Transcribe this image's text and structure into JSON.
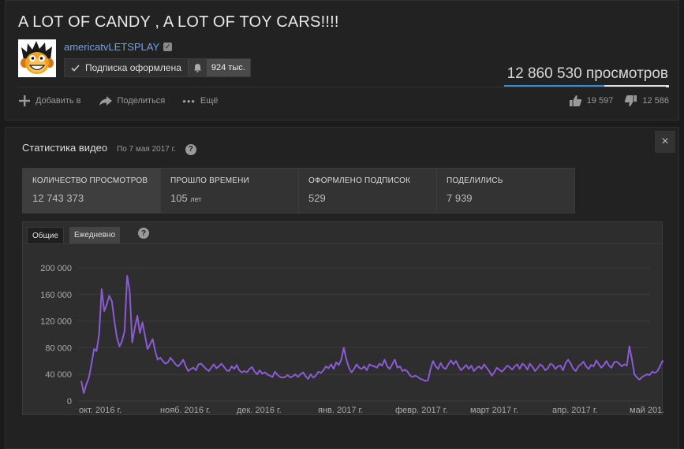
{
  "video": {
    "title": "A LOT OF CANDY , A LOT OF TOY CARS!!!!",
    "channel": "americatvLETSPLAY",
    "subscribe_label": "Подписка оформлена",
    "subscriber_count": "924 тыс.",
    "views": "12 860 530 просмотров",
    "like_ratio": 0.61
  },
  "actions": {
    "add_label": "Добавить в",
    "share_label": "Поделиться",
    "more_label": "Ещё",
    "likes": "19 597",
    "dislikes": "12 586"
  },
  "stats": {
    "title": "Статистика видео",
    "date": "По 7 мая 2017 г.",
    "help": "?",
    "close": "×",
    "metrics": [
      {
        "label": "КОЛИЧЕСТВО ПРОСМОТРОВ",
        "value": "12 743 373",
        "unit": ""
      },
      {
        "label": "ПРОШЛО ВРЕМЕНИ",
        "value": "105",
        "unit": "лет"
      },
      {
        "label": "ОФОРМЛЕНО ПОДПИСОК",
        "value": "529",
        "unit": ""
      },
      {
        "label": "ПОДЕЛИЛИСЬ",
        "value": "7 939",
        "unit": ""
      }
    ],
    "tabs": [
      "Общие",
      "Ежедневно"
    ]
  },
  "colors": {
    "line": "#8b5bd6",
    "accent": "#2e8ee0",
    "channel": "#6fa3e8"
  },
  "chart_data": {
    "type": "line",
    "title": "",
    "ylim": [
      0,
      200000
    ],
    "yticks": [
      "200 000",
      "160 000",
      "120 000",
      "80 000",
      "40 000",
      "0"
    ],
    "xticks": [
      "окт. 2016 г.",
      "нояб. 2016 г.",
      "дек. 2016 г.",
      "янв. 2017 г.",
      "февр. 2017 г.",
      "март 2017 г.",
      "апр. 2017 г.",
      "май 201..."
    ],
    "grid": true,
    "series": [
      {
        "values": [
          30000,
          12000,
          25000,
          35000,
          55000,
          78000,
          75000,
          100000,
          168000,
          135000,
          145000,
          158000,
          150000,
          120000,
          95000,
          82000,
          90000,
          105000,
          188000,
          165000,
          88000,
          110000,
          128000,
          102000,
          118000,
          98000,
          78000,
          85000,
          93000,
          75000,
          62000,
          65000,
          60000,
          56000,
          58000,
          65000,
          60000,
          55000,
          52000,
          56000,
          62000,
          52000,
          45000,
          48000,
          50000,
          46000,
          55000,
          56000,
          52000,
          48000,
          45000,
          50000,
          55000,
          49000,
          52000,
          56000,
          51000,
          46000,
          45000,
          52000,
          48000,
          54000,
          46000,
          43000,
          45000,
          43000,
          48000,
          51000,
          44000,
          40000,
          46000,
          41000,
          43000,
          40000,
          38000,
          36000,
          44000,
          39000,
          36000,
          35000,
          36000,
          39000,
          35000,
          37000,
          40000,
          36000,
          40000,
          43000,
          37000,
          33000,
          40000,
          35000,
          38000,
          44000,
          42000,
          46000,
          52000,
          49000,
          55000,
          48000,
          58000,
          54000,
          62000,
          80000,
          62000,
          50000,
          43000,
          48000,
          55000,
          50000,
          48000,
          52000,
          46000,
          55000,
          53000,
          52000,
          50000,
          56000,
          53000,
          62000,
          52000,
          48000,
          55000,
          62000,
          50000,
          52000,
          45000,
          47000,
          44000,
          38000,
          36000,
          38000,
          36000,
          33000,
          32000,
          30000,
          31000,
          48000,
          60000,
          52000,
          48000,
          57000,
          50000,
          48000,
          55000,
          61000,
          55000,
          60000,
          52000,
          46000,
          50000,
          54000,
          48000,
          53000,
          45000,
          49000,
          52000,
          48000,
          55000,
          50000,
          45000,
          38000,
          43000,
          50000,
          47000,
          44000,
          48000,
          53000,
          51000,
          47000,
          52000,
          55000,
          48000,
          56000,
          53000,
          47000,
          56000,
          51000,
          45000,
          49000,
          55000,
          52000,
          46000,
          49000,
          56000,
          54000,
          48000,
          52000,
          53000,
          46000,
          57000,
          62000,
          56000,
          48000,
          45000,
          52000,
          55000,
          59000,
          52000,
          48000,
          54000,
          52000,
          61000,
          55000,
          50000,
          54000,
          60000,
          53000,
          50000,
          58000,
          59000,
          56000,
          52000,
          55000,
          53000,
          82000,
          62000,
          40000,
          35000,
          32000,
          36000,
          38000,
          40000,
          39000,
          44000,
          42000,
          45000,
          52000,
          60000,
          58000
        ],
        "color": "#8b5bd6"
      }
    ]
  }
}
